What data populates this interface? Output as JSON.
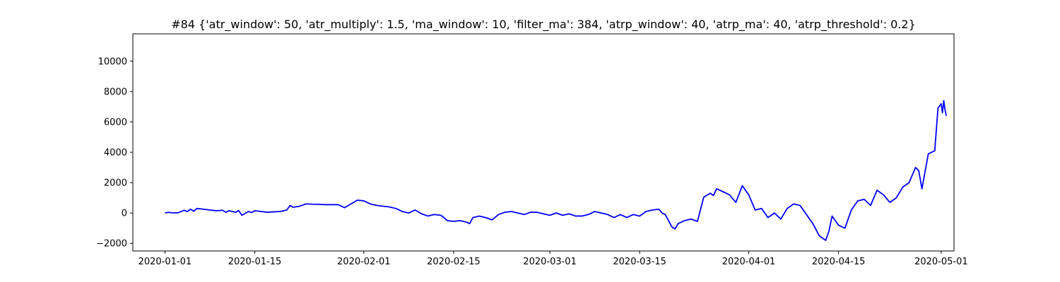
{
  "chart_data": {
    "type": "line",
    "title": "#84 {'atr_window': 50, 'atr_multiply': 1.5, 'ma_window': 10, 'filter_ma': 384, 'atrp_window': 40, 'atrp_ma': 40, 'atrp_threshold': 0.2}",
    "xlabel": "",
    "ylabel": "",
    "x_axis": "date",
    "xlim": [
      "2019-12-27",
      "2020-05-03"
    ],
    "ylim": [
      -2500,
      11800
    ],
    "x_ticks": [
      "2020-01-01",
      "2020-01-15",
      "2020-02-01",
      "2020-02-15",
      "2020-03-01",
      "2020-03-15",
      "2020-04-01",
      "2020-04-15",
      "2020-05-01"
    ],
    "y_ticks": [
      -2000,
      0,
      2000,
      4000,
      6000,
      8000,
      10000
    ],
    "grid": false,
    "series": [
      {
        "color": "#0000ff",
        "points": [
          [
            "2020-01-01",
            0
          ],
          [
            "2020-01-01",
            50
          ],
          [
            "2020-01-02",
            20
          ],
          [
            "2020-01-03",
            10
          ],
          [
            "2020-01-04",
            180
          ],
          [
            "2020-01-04",
            100
          ],
          [
            "2020-01-05",
            250
          ],
          [
            "2020-01-05",
            120
          ],
          [
            "2020-01-06",
            300
          ],
          [
            "2020-01-07",
            250
          ],
          [
            "2020-01-08",
            200
          ],
          [
            "2020-01-09",
            150
          ],
          [
            "2020-01-10",
            180
          ],
          [
            "2020-01-10",
            50
          ],
          [
            "2020-01-11",
            150
          ],
          [
            "2020-01-12",
            50
          ],
          [
            "2020-01-12",
            160
          ],
          [
            "2020-01-13",
            -150
          ],
          [
            "2020-01-14",
            100
          ],
          [
            "2020-01-14",
            30
          ],
          [
            "2020-01-15",
            150
          ],
          [
            "2020-01-16",
            100
          ],
          [
            "2020-01-17",
            50
          ],
          [
            "2020-01-18",
            80
          ],
          [
            "2020-01-19",
            100
          ],
          [
            "2020-01-20",
            200
          ],
          [
            "2020-01-20",
            500
          ],
          [
            "2020-01-21",
            380
          ],
          [
            "2020-01-22",
            450
          ],
          [
            "2020-01-23",
            600
          ],
          [
            "2020-01-24",
            580
          ],
          [
            "2020-01-25",
            570
          ],
          [
            "2020-01-26",
            550
          ],
          [
            "2020-01-27",
            550
          ],
          [
            "2020-01-28",
            550
          ],
          [
            "2020-01-29",
            350
          ],
          [
            "2020-01-30",
            600
          ],
          [
            "2020-01-31",
            850
          ],
          [
            "2020-02-01",
            800
          ],
          [
            "2020-02-02",
            600
          ],
          [
            "2020-02-03",
            500
          ],
          [
            "2020-02-04",
            450
          ],
          [
            "2020-02-05",
            400
          ],
          [
            "2020-02-06",
            300
          ],
          [
            "2020-02-07",
            100
          ],
          [
            "2020-02-08",
            0
          ],
          [
            "2020-02-09",
            200
          ],
          [
            "2020-02-10",
            -50
          ],
          [
            "2020-02-11",
            -200
          ],
          [
            "2020-02-12",
            -100
          ],
          [
            "2020-02-13",
            -150
          ],
          [
            "2020-02-13",
            -300
          ],
          [
            "2020-02-14",
            -500
          ],
          [
            "2020-02-15",
            -550
          ],
          [
            "2020-02-16",
            -500
          ],
          [
            "2020-02-17",
            -600
          ],
          [
            "2020-02-17",
            -700
          ],
          [
            "2020-02-18",
            -300
          ],
          [
            "2020-02-19",
            -200
          ],
          [
            "2020-02-20",
            -300
          ],
          [
            "2020-02-21",
            -450
          ],
          [
            "2020-02-22",
            -100
          ],
          [
            "2020-02-23",
            50
          ],
          [
            "2020-02-24",
            100
          ],
          [
            "2020-02-25",
            0
          ],
          [
            "2020-02-26",
            -100
          ],
          [
            "2020-02-27",
            50
          ],
          [
            "2020-02-28",
            50
          ],
          [
            "2020-02-29",
            -50
          ],
          [
            "2020-03-01",
            -150
          ],
          [
            "2020-03-02",
            0
          ],
          [
            "2020-03-03",
            -150
          ],
          [
            "2020-03-04",
            -50
          ],
          [
            "2020-03-05",
            -200
          ],
          [
            "2020-03-06",
            -200
          ],
          [
            "2020-03-07",
            -100
          ],
          [
            "2020-03-08",
            100
          ],
          [
            "2020-03-09",
            0
          ],
          [
            "2020-03-10",
            -100
          ],
          [
            "2020-03-11",
            -300
          ],
          [
            "2020-03-12",
            -100
          ],
          [
            "2020-03-13",
            -300
          ],
          [
            "2020-03-14",
            -100
          ],
          [
            "2020-03-15",
            -200
          ],
          [
            "2020-03-16",
            100
          ],
          [
            "2020-03-17",
            200
          ],
          [
            "2020-03-18",
            250
          ],
          [
            "2020-03-18",
            0
          ],
          [
            "2020-03-19",
            -100
          ],
          [
            "2020-03-20",
            -900
          ],
          [
            "2020-03-20",
            -1050
          ],
          [
            "2020-03-21",
            -700
          ],
          [
            "2020-03-22",
            -500
          ],
          [
            "2020-03-23",
            -400
          ],
          [
            "2020-03-24",
            -550
          ],
          [
            "2020-03-25",
            1050
          ],
          [
            "2020-03-26",
            1300
          ],
          [
            "2020-03-26",
            1150
          ],
          [
            "2020-03-27",
            1600
          ],
          [
            "2020-03-28",
            1400
          ],
          [
            "2020-03-29",
            1200
          ],
          [
            "2020-03-30",
            700
          ],
          [
            "2020-03-31",
            1800
          ],
          [
            "2020-04-01",
            1200
          ],
          [
            "2020-04-01",
            700
          ],
          [
            "2020-04-02",
            200
          ],
          [
            "2020-04-03",
            300
          ],
          [
            "2020-04-04",
            -300
          ],
          [
            "2020-04-05",
            0
          ],
          [
            "2020-04-06",
            -400
          ],
          [
            "2020-04-07",
            300
          ],
          [
            "2020-04-08",
            600
          ],
          [
            "2020-04-09",
            500
          ],
          [
            "2020-04-10",
            -100
          ],
          [
            "2020-04-11",
            -700
          ],
          [
            "2020-04-12",
            -1500
          ],
          [
            "2020-04-13",
            -1800
          ],
          [
            "2020-04-13",
            -1200
          ],
          [
            "2020-04-14",
            -200
          ],
          [
            "2020-04-15",
            -800
          ],
          [
            "2020-04-16",
            -1000
          ],
          [
            "2020-04-17",
            200
          ],
          [
            "2020-04-18",
            800
          ],
          [
            "2020-04-19",
            900
          ],
          [
            "2020-04-20",
            500
          ],
          [
            "2020-04-21",
            1500
          ],
          [
            "2020-04-22",
            1200
          ],
          [
            "2020-04-23",
            700
          ],
          [
            "2020-04-24",
            1000
          ],
          [
            "2020-04-25",
            1700
          ],
          [
            "2020-04-26",
            2000
          ],
          [
            "2020-04-27",
            3000
          ],
          [
            "2020-04-27",
            2800
          ],
          [
            "2020-04-28",
            1600
          ],
          [
            "2020-04-29",
            3900
          ],
          [
            "2020-04-30",
            4100
          ],
          [
            "2020-04-30",
            6900
          ],
          [
            "2020-05-01",
            7200
          ],
          [
            "2020-05-01",
            6600
          ],
          [
            "2020-05-01",
            7400
          ],
          [
            "2020-05-01",
            6800
          ],
          [
            "2020-05-01",
            6400
          ]
        ]
      }
    ]
  }
}
